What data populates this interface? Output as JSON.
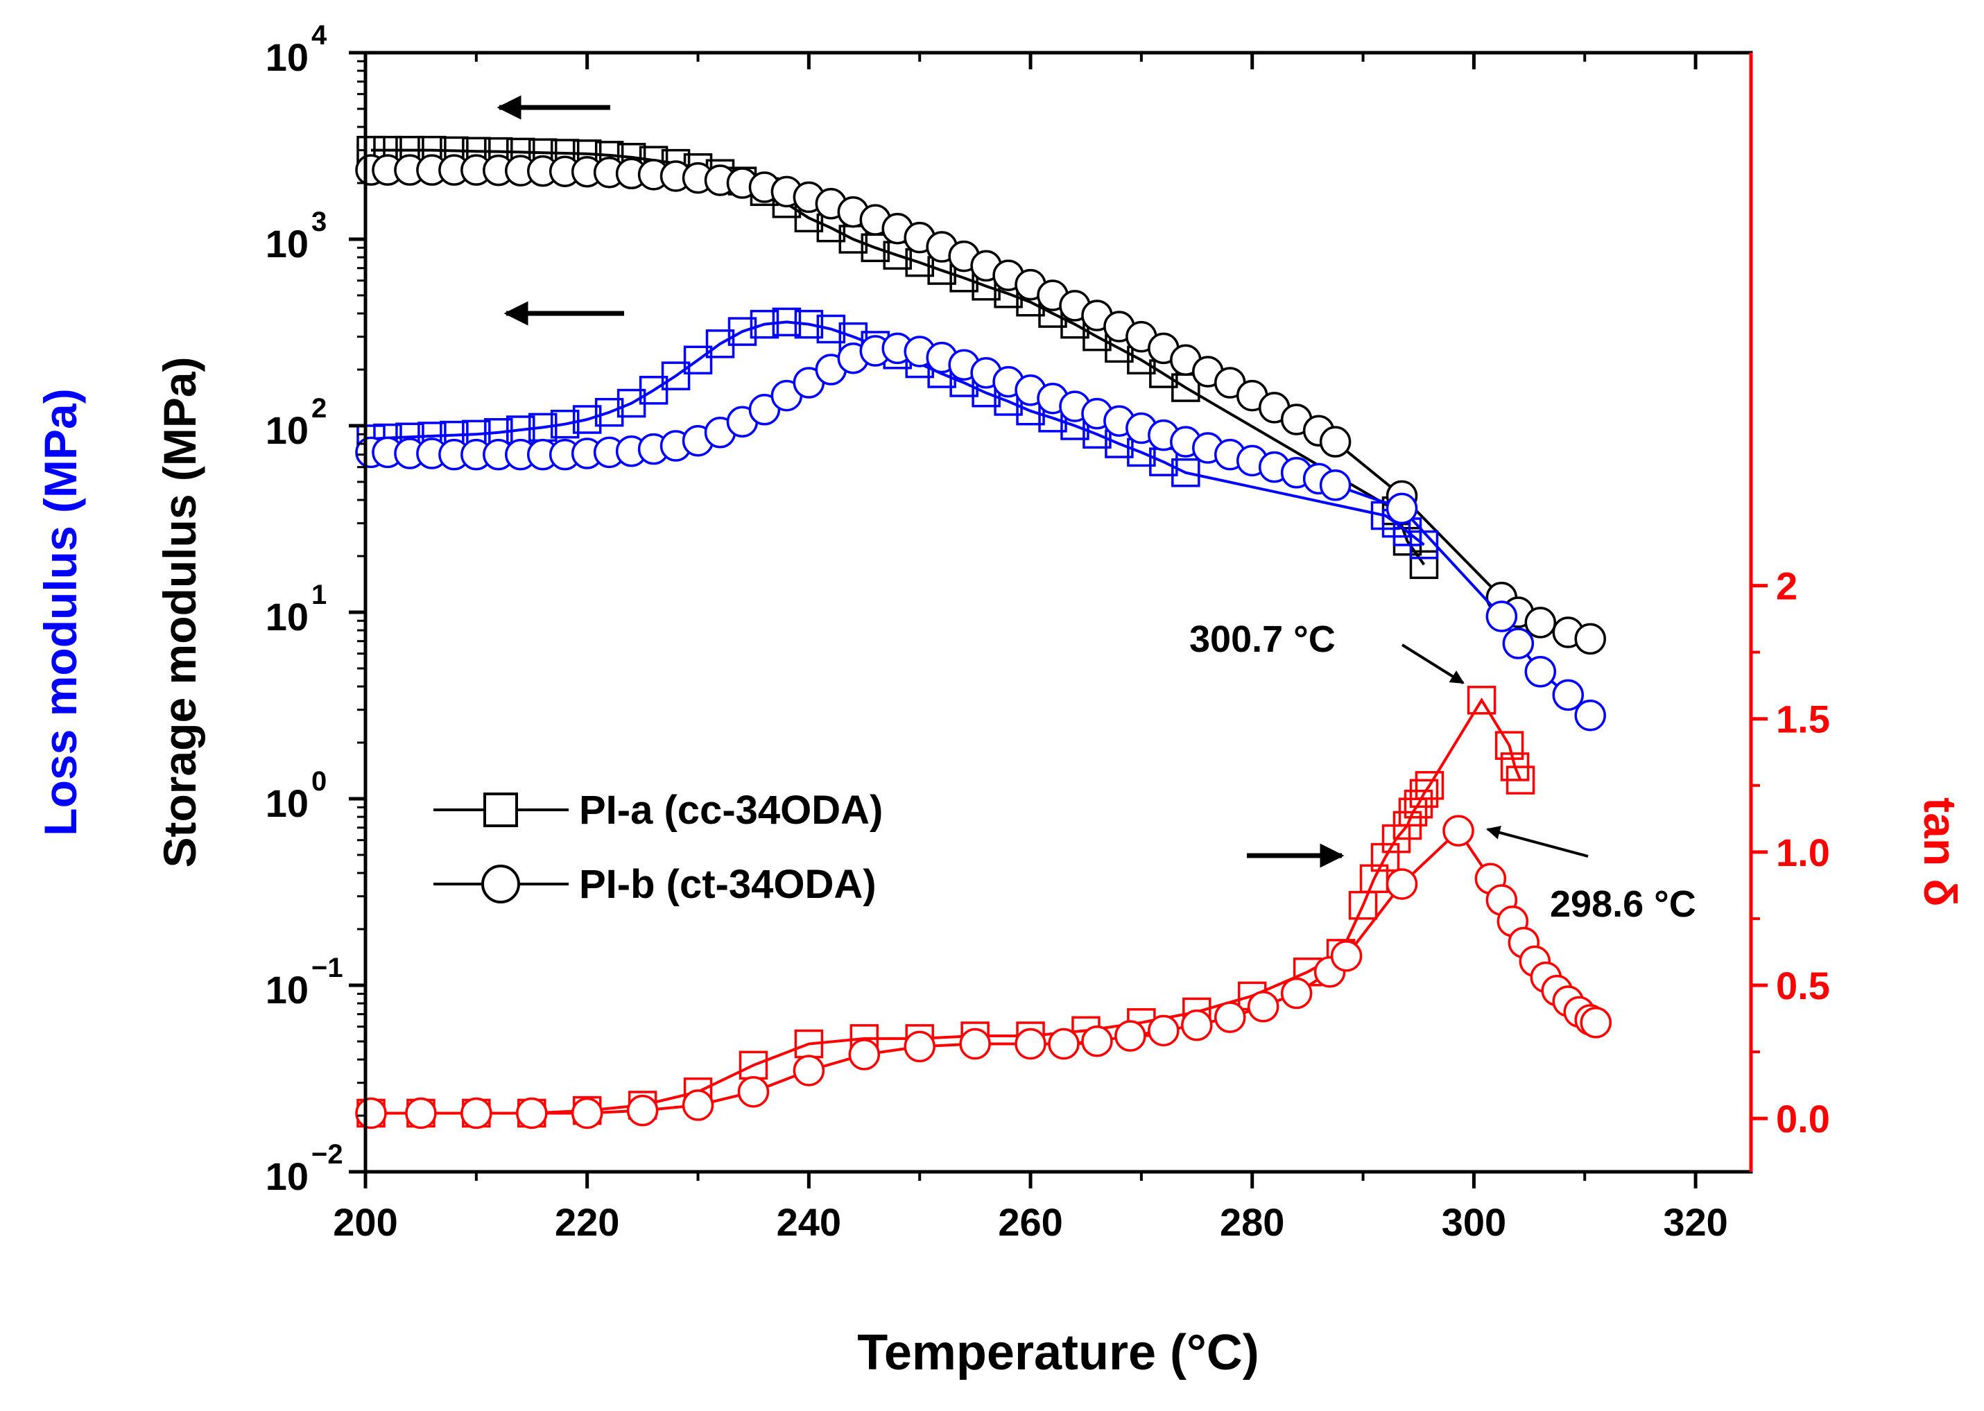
{
  "chart_data": {
    "type": "line",
    "x_axis": {
      "label": "Temperature (°C)",
      "range": [
        200,
        325
      ],
      "ticks": [
        200,
        220,
        240,
        260,
        280,
        300,
        320
      ]
    },
    "y_axis_left": {
      "label_storage": "Storage modulus (MPa)",
      "label_loss": "Loss modulus (MPa)",
      "scale": "log",
      "range": [
        0.01,
        10000
      ],
      "tick_labels": [
        {
          "base": "10",
          "exp": "4",
          "value": 10000
        },
        {
          "base": "10",
          "exp": "3",
          "value": 1000
        },
        {
          "base": "10",
          "exp": "2",
          "value": 100
        },
        {
          "base": "10",
          "exp": "1",
          "value": 10
        },
        {
          "base": "10",
          "exp": "0",
          "value": 1
        },
        {
          "base": "10",
          "exp": "−1",
          "value": 0.1
        },
        {
          "base": "10",
          "exp": "−2",
          "value": 0.01
        }
      ],
      "storage_color": "#000000",
      "loss_color": "#0000ff"
    },
    "y_axis_right": {
      "label": "tan δ",
      "range": [
        -0.2,
        4.0
      ],
      "ticks": [
        0.0,
        0.5,
        1.0,
        1.5,
        2.0
      ],
      "tick_labels": [
        "0.0",
        "0.5",
        "1.0",
        "1.5",
        "2"
      ],
      "color": "#ff0000"
    },
    "legend": {
      "position": "center-left",
      "entries": [
        {
          "label": "PI-a (cc-34ODA)",
          "marker": "square"
        },
        {
          "label": "PI-b (ct-34ODA)",
          "marker": "circle"
        }
      ]
    },
    "annotations": [
      {
        "text": "300.7 °C",
        "series": "PI-a tan δ peak",
        "x": 300.7,
        "y": 1.57
      },
      {
        "text": "298.6 °C",
        "series": "PI-b tan δ peak",
        "x": 298.6,
        "y": 1.08
      }
    ],
    "series": [
      {
        "name": "PI-a (cc-34ODA) storage modulus",
        "axis": "left",
        "marker": "square",
        "color": "#000000",
        "x": [
          200.5,
          202,
          204,
          206,
          208,
          210,
          212,
          214,
          216,
          218,
          220,
          222,
          224,
          226,
          228,
          230,
          232,
          234,
          236,
          238,
          240,
          242,
          244,
          246,
          248,
          250,
          252,
          254,
          256,
          258,
          260,
          262,
          264,
          266,
          268,
          270,
          272,
          274,
          293,
          294,
          295.5
        ],
        "y": [
          3000,
          3000,
          3000,
          3000,
          2980,
          2960,
          2950,
          2930,
          2910,
          2890,
          2870,
          2820,
          2750,
          2650,
          2550,
          2420,
          2250,
          2050,
          1800,
          1550,
          1300,
          1150,
          1000,
          900,
          820,
          750,
          680,
          620,
          560,
          510,
          460,
          400,
          350,
          300,
          260,
          225,
          190,
          160,
          35,
          24,
          18
        ]
      },
      {
        "name": "PI-b (ct-34ODA) storage modulus",
        "axis": "left",
        "marker": "circle",
        "color": "#000000",
        "x": [
          200.5,
          202,
          204,
          206,
          208,
          210,
          212,
          214,
          216,
          218,
          220,
          222,
          224,
          226,
          228,
          230,
          232,
          234,
          236,
          238,
          240,
          242,
          244,
          246,
          248,
          250,
          252,
          254,
          256,
          258,
          260,
          262,
          264,
          266,
          268,
          270,
          272,
          274,
          276,
          278,
          280,
          282,
          284,
          286,
          287.5,
          293.5,
          302.5,
          304,
          306,
          308.5,
          310.5
        ],
        "y": [
          2350,
          2350,
          2350,
          2350,
          2350,
          2350,
          2340,
          2330,
          2320,
          2310,
          2300,
          2280,
          2250,
          2220,
          2180,
          2130,
          2070,
          2000,
          1900,
          1800,
          1680,
          1550,
          1400,
          1270,
          1140,
          1020,
          910,
          810,
          720,
          640,
          570,
          500,
          440,
          390,
          340,
          300,
          260,
          225,
          195,
          170,
          145,
          125,
          108,
          94,
          82,
          42,
          12,
          10,
          8.8,
          7.8,
          7.2
        ]
      },
      {
        "name": "PI-a (cc-34ODA) loss modulus",
        "axis": "left",
        "marker": "square",
        "color": "#0000ff",
        "x": [
          200.5,
          202,
          204,
          206,
          208,
          210,
          212,
          214,
          216,
          218,
          220,
          222,
          224,
          226,
          228,
          230,
          232,
          234,
          236,
          238,
          240,
          242,
          244,
          246,
          248,
          250,
          252,
          254,
          256,
          258,
          260,
          262,
          264,
          266,
          268,
          270,
          272,
          274,
          292,
          293,
          294,
          295.5
        ],
        "y": [
          85,
          86,
          87,
          88,
          89,
          90,
          92,
          95,
          98,
          102,
          108,
          118,
          132,
          155,
          185,
          225,
          275,
          320,
          350,
          360,
          350,
          330,
          300,
          270,
          240,
          215,
          190,
          170,
          150,
          135,
          120,
          110,
          100,
          90,
          80,
          72,
          64,
          56,
          33,
          30,
          27,
          23
        ]
      },
      {
        "name": "PI-b (ct-34ODA) loss modulus",
        "axis": "left",
        "marker": "circle",
        "color": "#0000ff",
        "x": [
          200.5,
          202,
          204,
          206,
          208,
          210,
          212,
          214,
          216,
          218,
          220,
          222,
          224,
          226,
          228,
          230,
          232,
          234,
          236,
          238,
          240,
          242,
          244,
          246,
          248,
          250,
          252,
          254,
          256,
          258,
          260,
          262,
          264,
          266,
          268,
          270,
          272,
          274,
          276,
          278,
          280,
          282,
          284,
          286,
          287.5,
          293.5,
          302.5,
          304,
          306,
          308.5,
          310.5
        ],
        "y": [
          72,
          72,
          71,
          71,
          70,
          70,
          70,
          70,
          70,
          70,
          71,
          72,
          73,
          75,
          78,
          83,
          92,
          105,
          122,
          145,
          170,
          200,
          230,
          252,
          260,
          250,
          232,
          212,
          192,
          172,
          155,
          140,
          127,
          116,
          106,
          97,
          89,
          82,
          76,
          70,
          65,
          60,
          56,
          52,
          48,
          36,
          9.5,
          6.8,
          4.8,
          3.6,
          2.8
        ]
      },
      {
        "name": "PI-a (cc-34ODA) tan δ",
        "axis": "right",
        "marker": "square",
        "color": "#ff0000",
        "x": [
          200.5,
          205,
          210,
          215,
          220,
          225,
          230,
          235,
          240,
          245,
          250,
          255,
          260,
          265,
          270,
          275,
          280,
          285,
          288,
          290,
          291,
          292,
          293,
          294,
          294.5,
          295,
          295.5,
          296,
          300.7,
          303.2,
          303.7,
          304.2
        ],
        "y": [
          0.02,
          0.02,
          0.02,
          0.02,
          0.03,
          0.05,
          0.1,
          0.2,
          0.28,
          0.3,
          0.3,
          0.31,
          0.31,
          0.33,
          0.36,
          0.4,
          0.46,
          0.55,
          0.62,
          0.8,
          0.9,
          0.98,
          1.05,
          1.1,
          1.15,
          1.18,
          1.22,
          1.25,
          1.57,
          1.4,
          1.32,
          1.27
        ]
      },
      {
        "name": "PI-b (ct-34ODA) tan δ",
        "axis": "right",
        "marker": "circle",
        "color": "#ff0000",
        "x": [
          200.5,
          205,
          210,
          215,
          220,
          225,
          230,
          235,
          240,
          245,
          250,
          255,
          260,
          263,
          266,
          269,
          272,
          275,
          278,
          281,
          284,
          287,
          288.5,
          293.5,
          298.6,
          301.5,
          302.5,
          303.5,
          304.5,
          305.5,
          306.5,
          307.5,
          308.5,
          309.5,
          310.5,
          311
        ],
        "y": [
          0.02,
          0.02,
          0.02,
          0.02,
          0.02,
          0.03,
          0.05,
          0.1,
          0.18,
          0.24,
          0.27,
          0.28,
          0.28,
          0.28,
          0.29,
          0.31,
          0.33,
          0.35,
          0.38,
          0.42,
          0.47,
          0.55,
          0.61,
          0.88,
          1.08,
          0.9,
          0.82,
          0.74,
          0.66,
          0.59,
          0.53,
          0.48,
          0.44,
          0.4,
          0.37,
          0.36
        ]
      }
    ]
  }
}
